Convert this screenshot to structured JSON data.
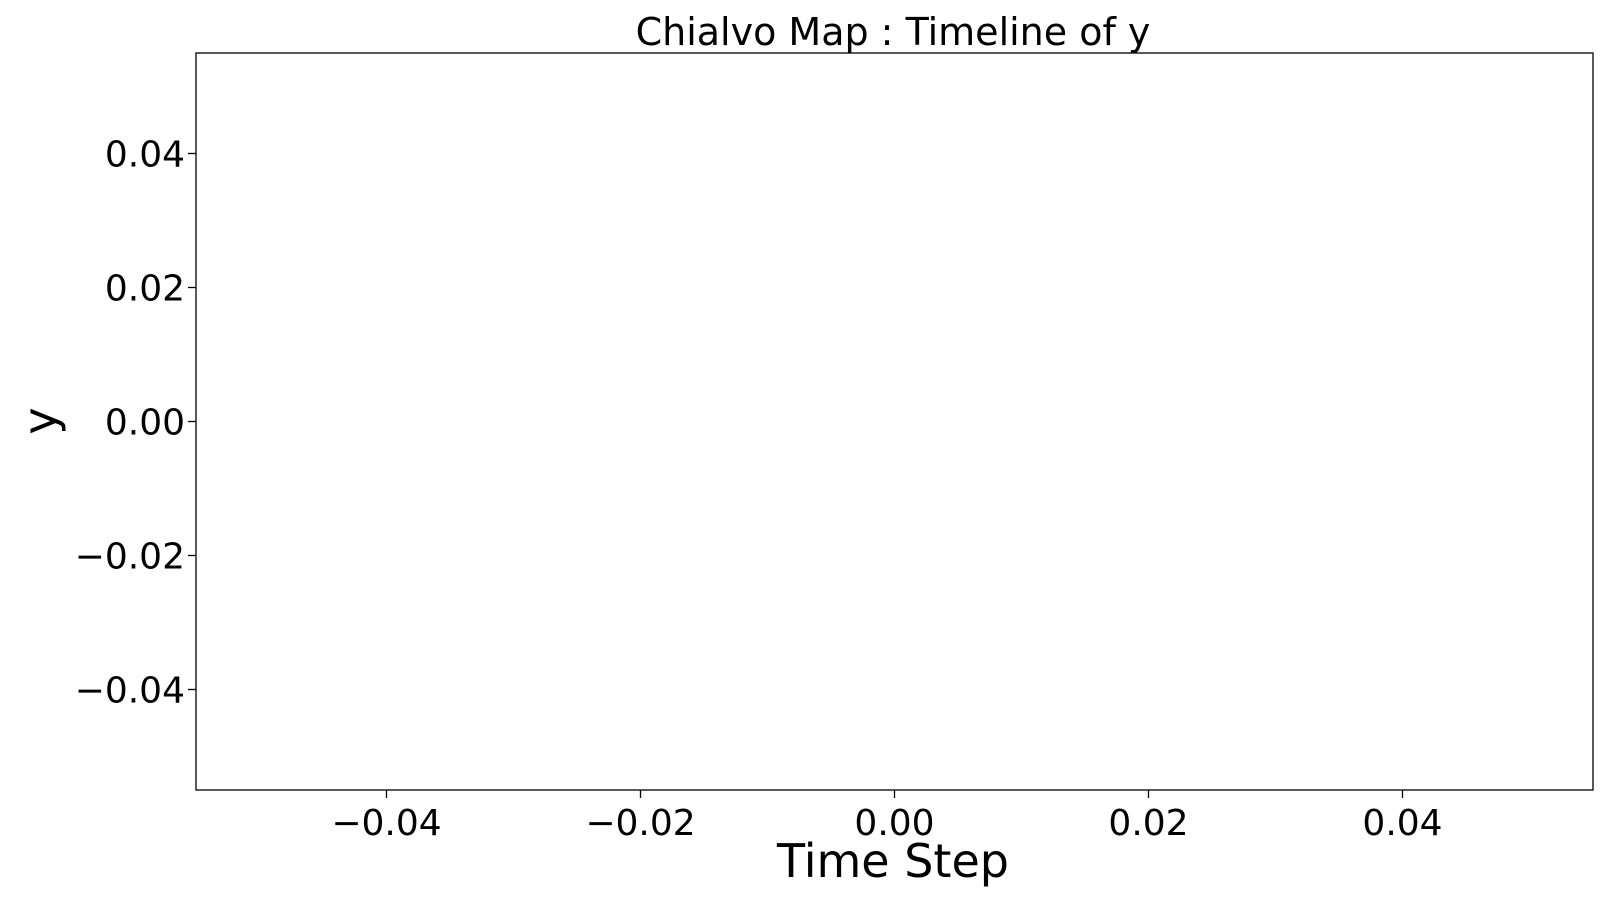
{
  "chart_data": {
    "type": "line",
    "title": "Chialvo Map : Timeline of y",
    "xlabel": "Time Step",
    "ylabel": "y",
    "xlim": [
      -0.055,
      0.055
    ],
    "ylim": [
      -0.055,
      0.055
    ],
    "x_ticks": [
      -0.04,
      -0.02,
      0.0,
      0.02,
      0.04
    ],
    "x_tick_labels": [
      "−0.04",
      "−0.02",
      "0.00",
      "0.02",
      "0.04"
    ],
    "y_ticks": [
      -0.04,
      -0.02,
      0.0,
      0.02,
      0.04
    ],
    "y_tick_labels": [
      "−0.04",
      "−0.02",
      "0.00",
      "0.02",
      "0.04"
    ],
    "grid": false,
    "series": [],
    "colors": {
      "axes": "#000000",
      "background": "#ffffff"
    }
  }
}
